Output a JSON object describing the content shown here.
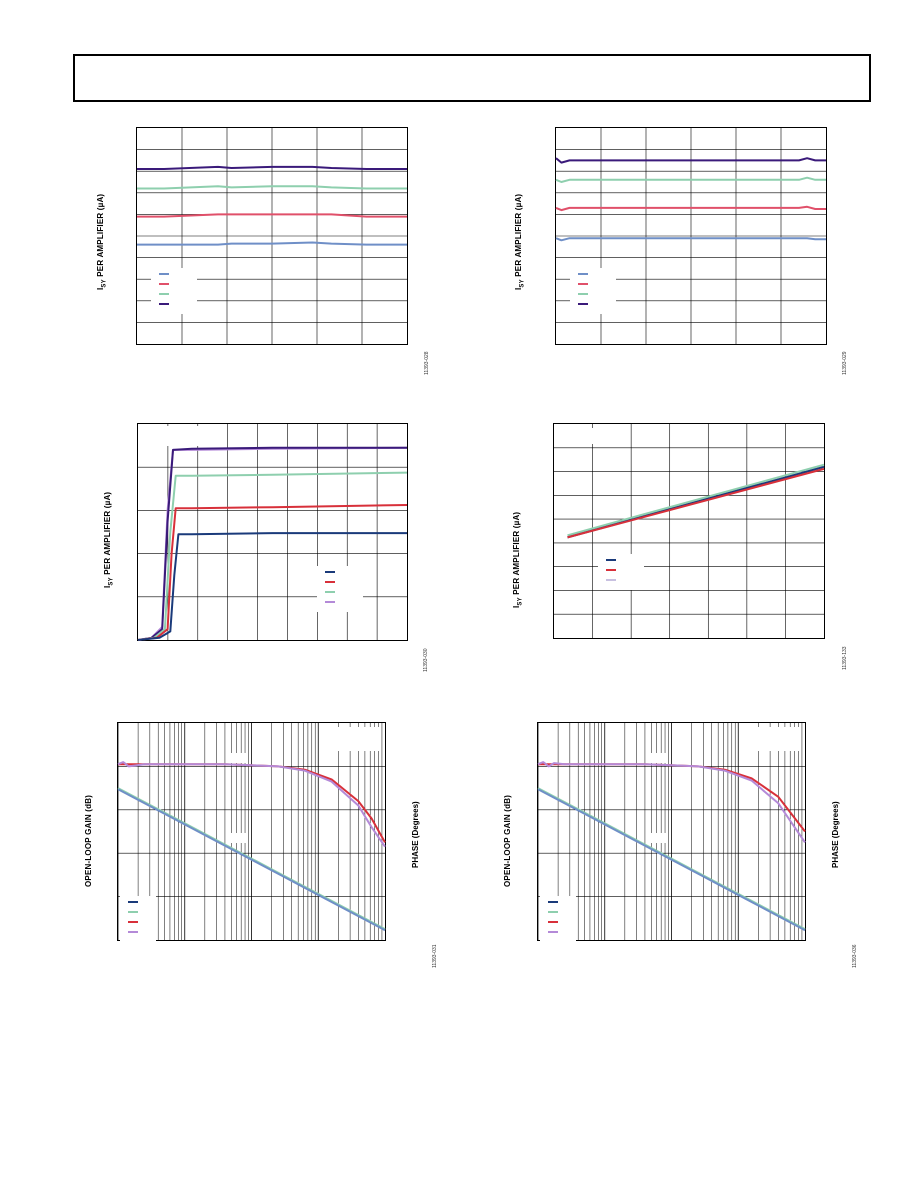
{
  "header": {},
  "figures": [
    {
      "id": "fig1",
      "ylabel_main": "I",
      "ylabel_sub": "SY",
      "ylabel_rest": " PER AMPLIFIER (µA)",
      "fig_code": "11393-028"
    },
    {
      "id": "fig2",
      "ylabel_main": "I",
      "ylabel_sub": "SY",
      "ylabel_rest": " PER AMPLIFIER (µA)",
      "fig_code": "11393-029"
    },
    {
      "id": "fig3",
      "ylabel_main": "I",
      "ylabel_sub": "SY",
      "ylabel_rest": " PER AMPLIFIER (µA)",
      "fig_code": "11393-030"
    },
    {
      "id": "fig4",
      "ylabel_main": "I",
      "ylabel_sub": "SY",
      "ylabel_rest": " PER AMPLIFIER (µA)",
      "fig_code": "11393-133"
    },
    {
      "id": "fig5",
      "ylabel_left": "OPEN-LOOP GAIN (dB)",
      "ylabel_right": "PHASE (Degrees)",
      "fig_code": "11393-031"
    },
    {
      "id": "fig6",
      "ylabel_left": "OPEN-LOOP GAIN (dB)",
      "ylabel_right": "PHASE (Degrees)",
      "fig_code": "11393-036"
    }
  ],
  "chart_data": [
    {
      "type": "line",
      "title": "",
      "ylabel": "ISY PER AMPLIFIER (µA)",
      "grid": true,
      "grid_cols": 6,
      "grid_rows": 10,
      "legend_colors": [
        "#6f8fc7",
        "#e0506a",
        "#8ecfae",
        "#3a1a7a"
      ],
      "series": [
        {
          "color": "#3a1a7a",
          "x": [
            0,
            0.1,
            0.3,
            0.35,
            0.5,
            0.65,
            0.72,
            0.85,
            1
          ],
          "y": [
            0.81,
            0.81,
            0.82,
            0.815,
            0.82,
            0.82,
            0.815,
            0.81,
            0.81
          ]
        },
        {
          "color": "#8ecfae",
          "x": [
            0,
            0.1,
            0.3,
            0.35,
            0.5,
            0.65,
            0.72,
            0.85,
            1
          ],
          "y": [
            0.72,
            0.72,
            0.73,
            0.725,
            0.73,
            0.73,
            0.725,
            0.72,
            0.72
          ]
        },
        {
          "color": "#e0506a",
          "x": [
            0,
            0.1,
            0.3,
            0.35,
            0.5,
            0.65,
            0.72,
            0.85,
            1
          ],
          "y": [
            0.59,
            0.59,
            0.6,
            0.6,
            0.6,
            0.6,
            0.6,
            0.59,
            0.59
          ]
        },
        {
          "color": "#6f8fc7",
          "x": [
            0,
            0.1,
            0.3,
            0.35,
            0.5,
            0.65,
            0.72,
            0.85,
            1
          ],
          "y": [
            0.46,
            0.46,
            0.46,
            0.465,
            0.465,
            0.47,
            0.465,
            0.46,
            0.46
          ]
        }
      ]
    },
    {
      "type": "line",
      "title": "",
      "ylabel": "ISY PER AMPLIFIER (µA)",
      "grid": true,
      "grid_cols": 6,
      "grid_rows": 10,
      "legend_colors": [
        "#6f8fc7",
        "#e0506a",
        "#8ecfae",
        "#3a1a7a"
      ],
      "series": [
        {
          "color": "#3a1a7a",
          "x": [
            0,
            0.02,
            0.05,
            0.1,
            0.5,
            0.9,
            0.93,
            0.96,
            1
          ],
          "y": [
            0.86,
            0.84,
            0.85,
            0.85,
            0.85,
            0.85,
            0.86,
            0.85,
            0.85
          ]
        },
        {
          "color": "#8ecfae",
          "x": [
            0,
            0.02,
            0.05,
            0.1,
            0.5,
            0.9,
            0.93,
            0.96,
            1
          ],
          "y": [
            0.76,
            0.75,
            0.76,
            0.76,
            0.76,
            0.76,
            0.77,
            0.76,
            0.76
          ]
        },
        {
          "color": "#e0506a",
          "x": [
            0,
            0.02,
            0.05,
            0.1,
            0.5,
            0.9,
            0.93,
            0.96,
            1
          ],
          "y": [
            0.63,
            0.62,
            0.63,
            0.63,
            0.63,
            0.63,
            0.635,
            0.625,
            0.625
          ]
        },
        {
          "color": "#6f8fc7",
          "x": [
            0,
            0.02,
            0.05,
            0.1,
            0.5,
            0.9,
            0.93,
            0.96,
            1
          ],
          "y": [
            0.49,
            0.48,
            0.49,
            0.49,
            0.49,
            0.49,
            0.49,
            0.485,
            0.485
          ]
        }
      ]
    },
    {
      "type": "line",
      "title": "",
      "ylabel": "ISY PER AMPLIFIER (µA)",
      "grid": true,
      "grid_cols": 9,
      "grid_rows": 5,
      "legend_colors": [
        "#1a3a7a",
        "#d8303a",
        "#8ecfae",
        "#b48ad8"
      ],
      "series": [
        {
          "color": "#b48ad8",
          "x": [
            0,
            0.05,
            0.09,
            0.11,
            0.13,
            0.2,
            0.5,
            1
          ],
          "y": [
            0,
            0.01,
            0.06,
            0.6,
            0.88,
            0.88,
            0.885,
            0.89
          ]
        },
        {
          "color": "#3a1a7a",
          "x": [
            0,
            0.05,
            0.09,
            0.11,
            0.13,
            0.2,
            0.5,
            1
          ],
          "y": [
            0,
            0.01,
            0.05,
            0.55,
            0.88,
            0.885,
            0.89,
            0.89
          ]
        },
        {
          "color": "#8ecfae",
          "x": [
            0,
            0.06,
            0.1,
            0.12,
            0.14,
            0.2,
            0.5,
            1
          ],
          "y": [
            0,
            0.01,
            0.05,
            0.5,
            0.76,
            0.76,
            0.765,
            0.775
          ]
        },
        {
          "color": "#d8303a",
          "x": [
            0,
            0.07,
            0.11,
            0.125,
            0.14,
            0.2,
            0.5,
            1
          ],
          "y": [
            0,
            0.01,
            0.05,
            0.4,
            0.61,
            0.61,
            0.615,
            0.625
          ]
        },
        {
          "color": "#1a3a7a",
          "x": [
            0,
            0.08,
            0.12,
            0.135,
            0.15,
            0.2,
            0.5,
            1
          ],
          "y": [
            0,
            0.01,
            0.04,
            0.3,
            0.49,
            0.49,
            0.495,
            0.495
          ]
        }
      ]
    },
    {
      "type": "line",
      "title": "",
      "ylabel": "ISY PER AMPLIFIER (µA)",
      "grid": true,
      "grid_cols": 7,
      "grid_rows": 9,
      "legend_colors": [
        "#1a3a7a",
        "#d8303a",
        "#c8c0e0"
      ],
      "series": [
        {
          "color": "#8ecfae",
          "x": [
            0.05,
            1
          ],
          "y": [
            0.48,
            0.81
          ]
        },
        {
          "color": "#1a3a7a",
          "x": [
            0.05,
            1
          ],
          "y": [
            0.47,
            0.8
          ]
        },
        {
          "color": "#d8303a",
          "x": [
            0.05,
            1
          ],
          "y": [
            0.47,
            0.79
          ]
        }
      ]
    },
    {
      "type": "line",
      "title": "",
      "ylabel": "OPEN-LOOP GAIN (dB)",
      "ylabel_right": "PHASE (Degrees)",
      "xscale": "log",
      "decades": 4,
      "legend_colors": [
        "#1a3a7a",
        "#8ecfae",
        "#d8303a",
        "#b48ad8"
      ],
      "series": [
        {
          "color": "#d8303a",
          "x": [
            0,
            0.1,
            0.2,
            0.4,
            0.5,
            0.6,
            0.7,
            0.8,
            0.9,
            0.95,
            1
          ],
          "y": [
            0.81,
            0.81,
            0.81,
            0.81,
            0.805,
            0.8,
            0.785,
            0.74,
            0.64,
            0.56,
            0.45
          ]
        },
        {
          "color": "#b48ad8",
          "x": [
            0,
            0.02,
            0.04,
            0.1,
            0.2,
            0.4,
            0.5,
            0.6,
            0.7,
            0.8,
            0.9,
            0.95,
            1
          ],
          "y": [
            0.81,
            0.82,
            0.8,
            0.81,
            0.81,
            0.81,
            0.805,
            0.8,
            0.78,
            0.73,
            0.62,
            0.52,
            0.43
          ]
        },
        {
          "color": "#8ecfae",
          "x": [
            0,
            0.2,
            0.4,
            0.6,
            0.8,
            1
          ],
          "y": [
            0.7,
            0.57,
            0.44,
            0.31,
            0.18,
            0.05
          ]
        },
        {
          "color": "#6f8fc7",
          "x": [
            0,
            0.2,
            0.4,
            0.6,
            0.8,
            1
          ],
          "y": [
            0.695,
            0.565,
            0.435,
            0.305,
            0.175,
            0.045
          ]
        }
      ]
    },
    {
      "type": "line",
      "title": "",
      "ylabel": "OPEN-LOOP GAIN (dB)",
      "ylabel_right": "PHASE (Degrees)",
      "xscale": "log",
      "decades": 4,
      "legend_colors": [
        "#1a3a7a",
        "#8ecfae",
        "#d8303a",
        "#b48ad8"
      ],
      "series": [
        {
          "color": "#d8303a",
          "x": [
            0,
            0.1,
            0.2,
            0.4,
            0.5,
            0.6,
            0.7,
            0.8,
            0.9,
            0.95,
            1
          ],
          "y": [
            0.81,
            0.81,
            0.81,
            0.81,
            0.805,
            0.8,
            0.785,
            0.745,
            0.66,
            0.58,
            0.5
          ]
        },
        {
          "color": "#b48ad8",
          "x": [
            0,
            0.02,
            0.04,
            0.06,
            0.1,
            0.2,
            0.4,
            0.5,
            0.6,
            0.7,
            0.8,
            0.9,
            0.95,
            1
          ],
          "y": [
            0.81,
            0.82,
            0.8,
            0.815,
            0.81,
            0.81,
            0.81,
            0.805,
            0.8,
            0.78,
            0.735,
            0.63,
            0.54,
            0.45
          ]
        },
        {
          "color": "#8ecfae",
          "x": [
            0,
            0.2,
            0.4,
            0.6,
            0.8,
            1
          ],
          "y": [
            0.7,
            0.57,
            0.44,
            0.31,
            0.18,
            0.05
          ]
        },
        {
          "color": "#6f8fc7",
          "x": [
            0,
            0.2,
            0.4,
            0.6,
            0.8,
            1
          ],
          "y": [
            0.695,
            0.565,
            0.435,
            0.305,
            0.175,
            0.045
          ]
        }
      ]
    }
  ]
}
